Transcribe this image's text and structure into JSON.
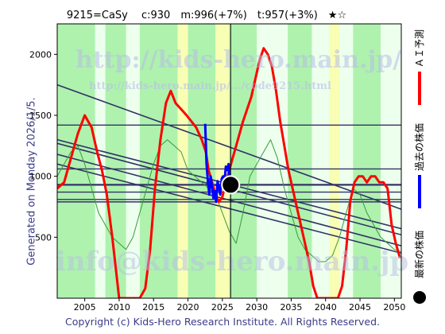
{
  "header": {
    "title": "9215=CaSy　 c:930　m:996(+7%)　t:957(+3%)　★☆"
  },
  "side_label": "Generated on Monday 2026/1/5.",
  "footer": "Copyright (c) Kids-Hero Research Institute. All Rights Reserved.",
  "watermarks": {
    "main": "http://kids-hero.main.jp/",
    "sub": "http://kids-hero.main.jp/.../code9215.html",
    "email": "info@kids-hero.main.jp"
  },
  "legend": [
    {
      "label": "ＡＩ予測",
      "color": "#ff0000"
    },
    {
      "label": "過去の株価",
      "color": "#0000ff"
    },
    {
      "label": "最新の株価",
      "color": "#000000"
    }
  ],
  "colors": {
    "background": "#ccffcc",
    "band_green": "#a8f0a8",
    "band_yellow": "#ffffb0",
    "band_white": "#f2fff2",
    "prediction": "#ff0000",
    "history": "#0000ff",
    "trend": "#333366",
    "green_line": "#3a9a3a"
  },
  "chart_data": {
    "type": "line",
    "xlim": [
      2001,
      2051
    ],
    "ylim": [
      0,
      2250
    ],
    "x_ticks": [
      2005,
      2010,
      2015,
      2020,
      2025,
      2030,
      2035,
      2040,
      2045,
      2050
    ],
    "y_ticks": [
      500,
      1000,
      1500,
      2000
    ],
    "latest_point": {
      "x": 2026.2,
      "y": 930
    },
    "latest_year_marker": 2026.2,
    "horizontal_levels": [
      1420,
      1060,
      930,
      870,
      810,
      790
    ],
    "trend_lines": [
      {
        "x": [
          2001,
          2051
        ],
        "y": [
          1750,
          730
        ]
      },
      {
        "x": [
          2001,
          2051
        ],
        "y": [
          1300,
          570
        ]
      },
      {
        "x": [
          2001,
          2051
        ],
        "y": [
          1270,
          520
        ]
      },
      {
        "x": [
          2001,
          2051
        ],
        "y": [
          1180,
          430
        ]
      },
      {
        "x": [
          2001,
          2051
        ],
        "y": [
          1100,
          370
        ]
      }
    ],
    "bands": [
      {
        "x0": 2001,
        "x1": 2006.5,
        "kind": "green"
      },
      {
        "x0": 2006.5,
        "x1": 2008,
        "kind": "white"
      },
      {
        "x0": 2008,
        "x1": 2011,
        "kind": "green"
      },
      {
        "x0": 2011,
        "x1": 2013,
        "kind": "white"
      },
      {
        "x0": 2013,
        "x1": 2018.5,
        "kind": "green"
      },
      {
        "x0": 2018.5,
        "x1": 2020,
        "kind": "yellow"
      },
      {
        "x0": 2020,
        "x1": 2024,
        "kind": "green"
      },
      {
        "x0": 2024,
        "x1": 2026,
        "kind": "yellow"
      },
      {
        "x0": 2026,
        "x1": 2030,
        "kind": "green"
      },
      {
        "x0": 2030,
        "x1": 2034.5,
        "kind": "white"
      },
      {
        "x0": 2034.5,
        "x1": 2038,
        "kind": "green"
      },
      {
        "x0": 2038,
        "x1": 2040.5,
        "kind": "white"
      },
      {
        "x0": 2040.5,
        "x1": 2042,
        "kind": "yellow"
      },
      {
        "x0": 2042,
        "x1": 2044,
        "kind": "white"
      },
      {
        "x0": 2044,
        "x1": 2048,
        "kind": "green"
      },
      {
        "x0": 2048,
        "x1": 2051,
        "kind": "white"
      }
    ],
    "series": [
      {
        "name": "ＡＩ予測",
        "color": "#ff0000",
        "x": [
          2001,
          2002,
          2003,
          2004,
          2005,
          2006,
          2006.8,
          2007.5,
          2008.2,
          2009,
          2009.6,
          2010,
          2010.5,
          2011,
          2012,
          2013,
          2013.8,
          2014.5,
          2015.2,
          2016,
          2016.8,
          2017.5,
          2018.2,
          2019,
          2019.8,
          2020.5,
          2021.2,
          2022,
          2022.6,
          2023,
          2023.5,
          2024,
          2024.5,
          2025,
          2025.5,
          2026,
          2026.5,
          2027,
          2027.5,
          2028,
          2028.6,
          2029.2,
          2029.8,
          2030.4,
          2031,
          2031.6,
          2032.2,
          2032.8,
          2033.4,
          2034,
          2034.6,
          2035.2,
          2035.8,
          2036.4,
          2037,
          2037.6,
          2038.2,
          2038.8,
          2039.4,
          2040,
          2040.6,
          2041.2,
          2041.8,
          2042.4,
          2043,
          2043.6,
          2044.2,
          2044.8,
          2045.4,
          2046,
          2046.6,
          2047.2,
          2047.8,
          2048.4,
          2049,
          2049.6,
          2050.2,
          2050.8
        ],
        "y": [
          900,
          950,
          1150,
          1350,
          1500,
          1400,
          1200,
          1050,
          850,
          500,
          200,
          0,
          0,
          0,
          0,
          0,
          80,
          400,
          900,
          1300,
          1600,
          1700,
          1600,
          1550,
          1500,
          1450,
          1400,
          1300,
          1200,
          1050,
          950,
          850,
          790,
          830,
          950,
          1050,
          1150,
          1250,
          1350,
          1450,
          1550,
          1650,
          1800,
          1950,
          2050,
          2000,
          1900,
          1700,
          1450,
          1250,
          1050,
          900,
          750,
          600,
          450,
          300,
          100,
          0,
          0,
          0,
          0,
          0,
          0,
          100,
          400,
          800,
          950,
          1000,
          1000,
          950,
          1000,
          1000,
          950,
          950,
          900,
          600,
          450,
          330
        ]
      },
      {
        "name": "過去の株価",
        "color": "#0000ff",
        "x": [
          2022.5,
          2022.7,
          2022.9,
          2023.1,
          2023.3,
          2023.5,
          2023.7,
          2023.9,
          2024.1,
          2024.3,
          2024.5,
          2024.7,
          2024.9,
          2025.1,
          2025.3,
          2025.5,
          2025.7,
          2025.9,
          2026.1
        ],
        "y": [
          1430,
          1100,
          950,
          850,
          1000,
          920,
          820,
          880,
          790,
          960,
          900,
          850,
          980,
          1000,
          950,
          1080,
          1050,
          1100,
          930
        ]
      },
      {
        "name": "",
        "color": "#3a9a3a",
        "x": [
          2001,
          2002,
          2003,
          2004,
          2005,
          2006,
          2007,
          2008,
          2009,
          2010,
          2011,
          2012,
          2013,
          2014,
          2015,
          2016,
          2017,
          2018,
          2019,
          2020,
          2021,
          2022,
          2023,
          2024,
          2025,
          2026,
          2027,
          2028,
          2029,
          2030,
          2031,
          2032,
          2033,
          2034,
          2035,
          2036,
          2037,
          2038,
          2039,
          2040,
          2041,
          2042,
          2043,
          2044,
          2045,
          2046,
          2047,
          2048,
          2049,
          2050,
          2051
        ],
        "y": [
          1000,
          1100,
          1200,
          1250,
          1100,
          900,
          700,
          600,
          500,
          450,
          400,
          500,
          700,
          900,
          1100,
          1250,
          1300,
          1250,
          1200,
          1050,
          1000,
          950,
          900,
          850,
          700,
          550,
          450,
          700,
          1000,
          1100,
          1200,
          1300,
          1150,
          900,
          700,
          500,
          400,
          350,
          300,
          300,
          350,
          500,
          700,
          900,
          850,
          700,
          600,
          500,
          450,
          400,
          380
        ]
      }
    ]
  }
}
